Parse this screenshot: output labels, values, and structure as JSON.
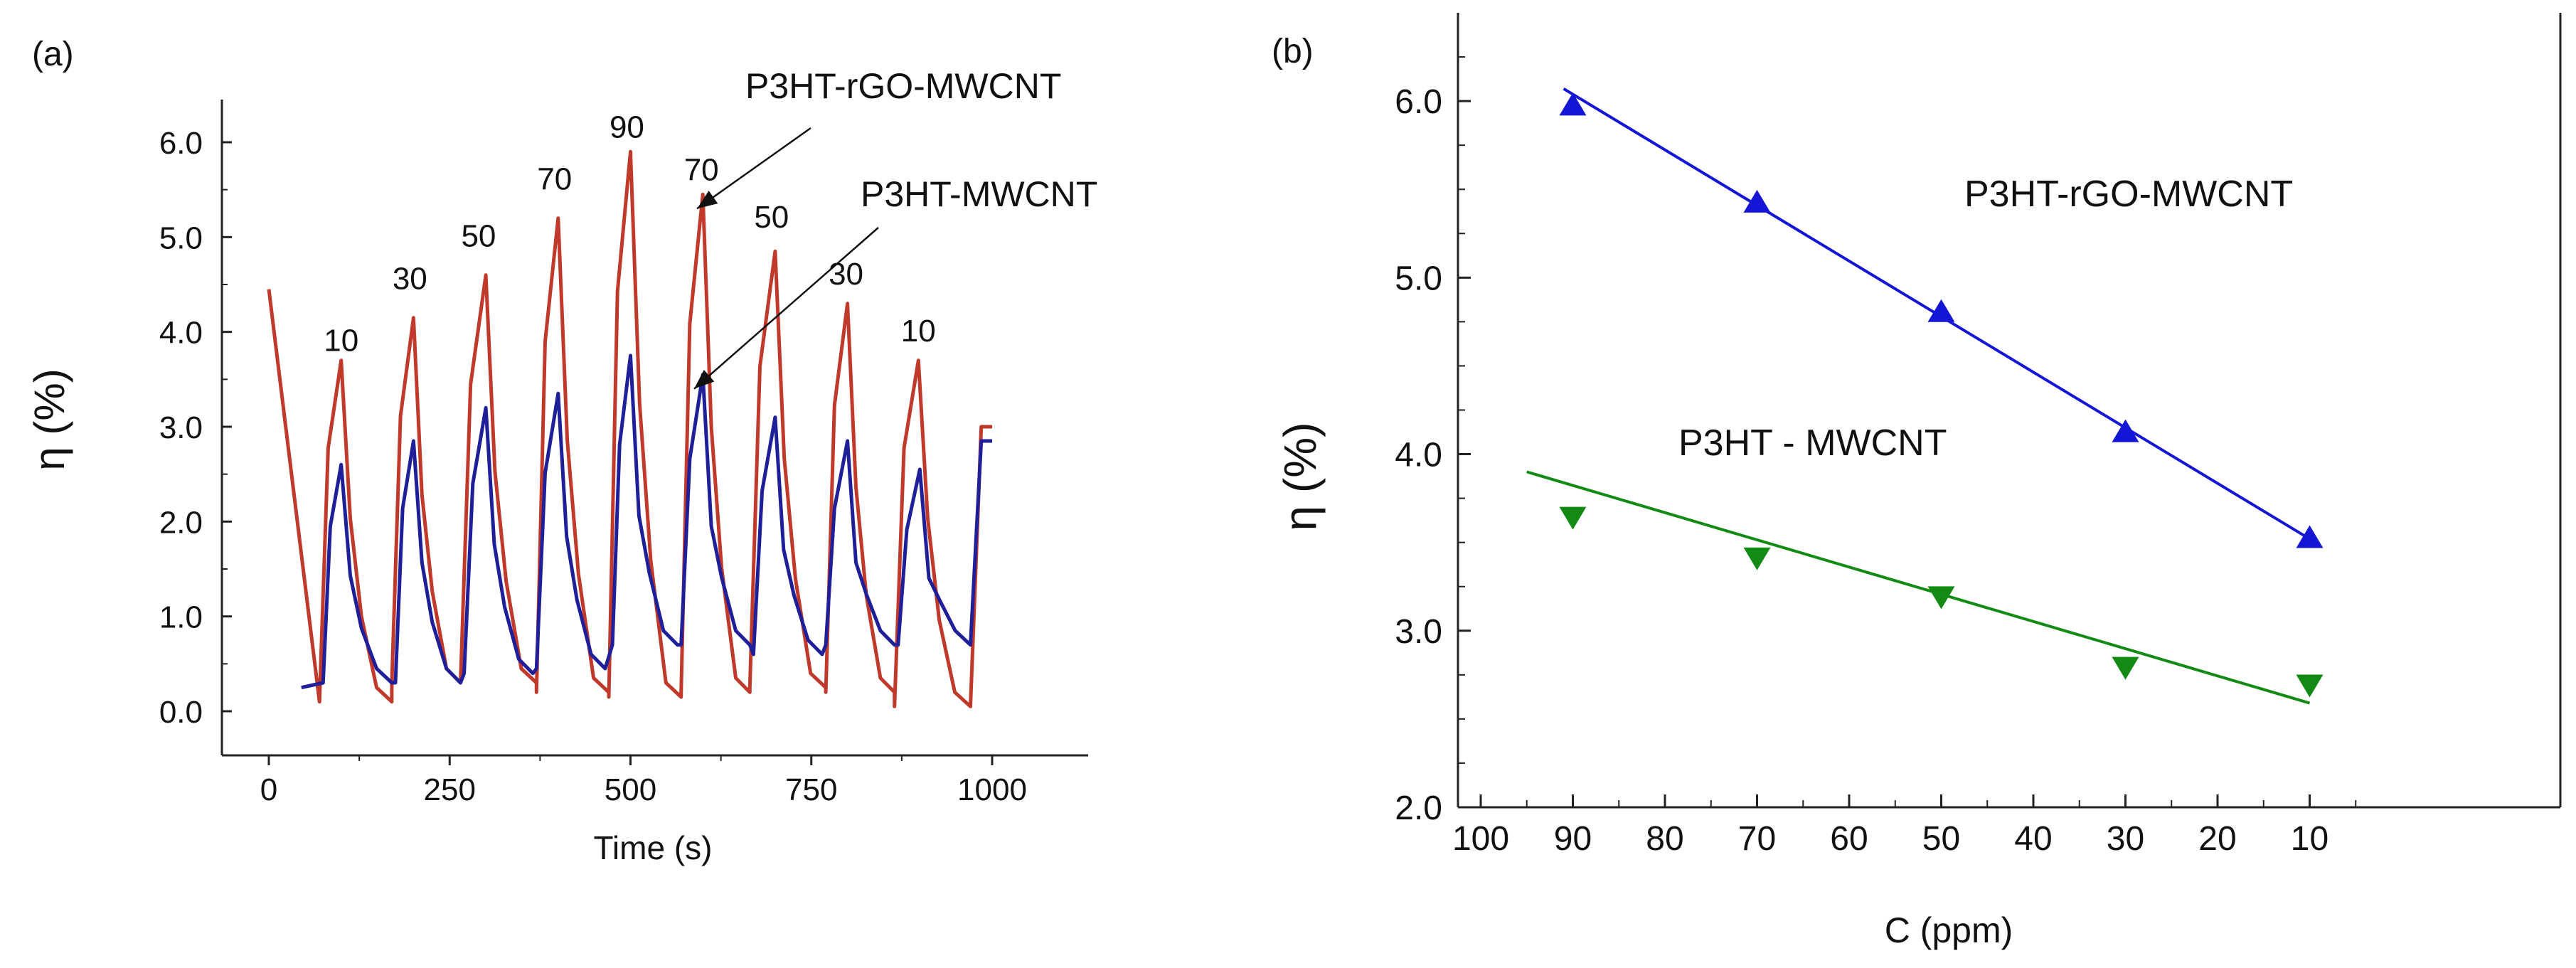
{
  "chart_data": [
    {
      "panel": "(a)",
      "type": "line",
      "xlabel": "Time (s)",
      "ylabel": "η (%)",
      "xlim": [
        0,
        1000
      ],
      "ylim": [
        0.0,
        6.0
      ],
      "xticks": [
        "0",
        "250",
        "500",
        "750",
        "1000"
      ],
      "yticks": [
        "0.0",
        "1.0",
        "2.0",
        "3.0",
        "4.0",
        "5.0",
        "6.0"
      ],
      "concentration_labels": [
        {
          "text": "10",
          "x": 100,
          "y": 3.8
        },
        {
          "text": "30",
          "x": 195,
          "y": 4.45
        },
        {
          "text": "50",
          "x": 290,
          "y": 4.9
        },
        {
          "text": "70",
          "x": 395,
          "y": 5.5
        },
        {
          "text": "90",
          "x": 495,
          "y": 6.05
        },
        {
          "text": "70",
          "x": 598,
          "y": 5.6
        },
        {
          "text": "50",
          "x": 695,
          "y": 5.1
        },
        {
          "text": "30",
          "x": 798,
          "y": 4.5
        },
        {
          "text": "10",
          "x": 898,
          "y": 3.9
        }
      ],
      "annotations": [
        {
          "text": "P3HT-rGO-MWCNT",
          "arrow_to": {
            "x": 592,
            "y": 5.3
          }
        },
        {
          "text": "P3HT-MWCNT",
          "arrow_to": {
            "x": 588,
            "y": 3.4
          }
        }
      ],
      "series": [
        {
          "name": "P3HT-rGO-MWCNT",
          "color": "#c0392b",
          "pulses": [
            {
              "start": 70,
              "peak": 100,
              "peak_value": 3.7,
              "end": 170,
              "base_value": 0.1
            },
            {
              "start": 170,
              "peak": 200,
              "peak_value": 4.15,
              "end": 265,
              "base_value": 0.3
            },
            {
              "start": 265,
              "peak": 300,
              "peak_value": 4.6,
              "end": 370,
              "base_value": 0.3
            },
            {
              "start": 370,
              "peak": 400,
              "peak_value": 5.2,
              "end": 470,
              "base_value": 0.2
            },
            {
              "start": 470,
              "peak": 500,
              "peak_value": 5.9,
              "end": 570,
              "base_value": 0.15
            },
            {
              "start": 570,
              "peak": 600,
              "peak_value": 5.45,
              "end": 665,
              "base_value": 0.2
            },
            {
              "start": 665,
              "peak": 700,
              "peak_value": 4.85,
              "end": 770,
              "base_value": 0.25
            },
            {
              "start": 770,
              "peak": 800,
              "peak_value": 4.3,
              "end": 865,
              "base_value": 0.2
            },
            {
              "start": 865,
              "peak": 898,
              "peak_value": 3.7,
              "end": 970,
              "base_value": 0.05
            }
          ],
          "start_value": 4.45,
          "final_rise_value": 3.0
        },
        {
          "name": "P3HT-MWCNT",
          "color": "#1f1f9a",
          "pulses": [
            {
              "start": 75,
              "peak": 100,
              "peak_value": 2.6,
              "end": 170,
              "base_value": 0.3
            },
            {
              "start": 175,
              "peak": 200,
              "peak_value": 2.85,
              "end": 265,
              "base_value": 0.3
            },
            {
              "start": 270,
              "peak": 300,
              "peak_value": 3.2,
              "end": 365,
              "base_value": 0.4
            },
            {
              "start": 370,
              "peak": 400,
              "peak_value": 3.35,
              "end": 465,
              "base_value": 0.45
            },
            {
              "start": 475,
              "peak": 500,
              "peak_value": 3.75,
              "end": 565,
              "base_value": 0.7
            },
            {
              "start": 570,
              "peak": 600,
              "peak_value": 3.55,
              "end": 665,
              "base_value": 0.7
            },
            {
              "start": 670,
              "peak": 700,
              "peak_value": 3.1,
              "end": 765,
              "base_value": 0.6
            },
            {
              "start": 770,
              "peak": 800,
              "peak_value": 2.85,
              "end": 865,
              "base_value": 0.7
            },
            {
              "start": 870,
              "peak": 900,
              "peak_value": 2.55,
              "end": 970,
              "base_value": 0.7
            }
          ],
          "start_value": 0.25,
          "start_x": 45,
          "final_rise_value": 2.85
        }
      ]
    },
    {
      "panel": "(b)",
      "type": "scatter",
      "xlabel": "C (ppm)",
      "ylabel": "η (%)",
      "xlim": [
        100,
        5
      ],
      "ylim": [
        2.0,
        6.5
      ],
      "xaxis_reversed": true,
      "xticks": [
        "100",
        "90",
        "80",
        "70",
        "60",
        "50",
        "40",
        "30",
        "20",
        "10"
      ],
      "yticks": [
        "2.0",
        "3.0",
        "4.0",
        "5.0",
        "6.0"
      ],
      "series": [
        {
          "name": "P3HT-rGO-MWCNT",
          "color": "#1515d6",
          "marker": "triangle-up",
          "x": [
            90,
            70,
            50,
            30,
            10
          ],
          "y": [
            5.97,
            5.42,
            4.8,
            4.12,
            3.52
          ],
          "fit_line": {
            "x": [
              91,
              10
            ],
            "y": [
              6.07,
              3.52
            ]
          }
        },
        {
          "name": "P3HT - MWCNT",
          "color": "#138a13",
          "marker": "triangle-down",
          "x": [
            90,
            70,
            50,
            30,
            10
          ],
          "y": [
            3.65,
            3.42,
            3.2,
            2.8,
            2.7
          ],
          "fit_line": {
            "x": [
              95,
              10
            ],
            "y": [
              3.9,
              2.59
            ]
          }
        }
      ]
    }
  ]
}
